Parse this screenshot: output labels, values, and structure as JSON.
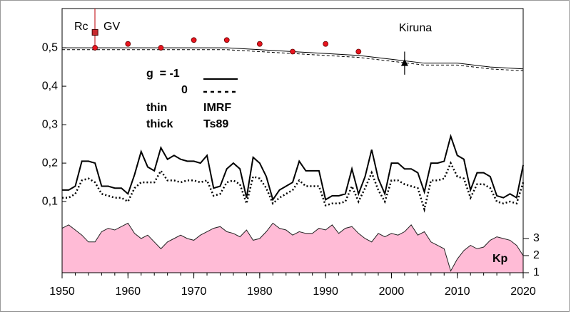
{
  "chart_data": {
    "type": "line",
    "xlim": [
      1950,
      2020
    ],
    "xticks": [
      1950,
      1960,
      1970,
      1980,
      1990,
      2000,
      2010,
      2020
    ],
    "ylim": [
      -0.085,
      0.602
    ],
    "yticks": [
      {
        "value": 0.1,
        "label": "0,1"
      },
      {
        "value": 0.2,
        "label": "0,2"
      },
      {
        "value": 0.3,
        "label": "0,3"
      },
      {
        "value": 0.4,
        "label": "0,4"
      },
      {
        "value": 0.5,
        "label": "0,5"
      }
    ],
    "y2lim": [
      1,
      16.46
    ],
    "y2ticks": [
      1,
      2,
      3
    ],
    "annotations": [
      "Rc",
      "GV",
      "Kiruna",
      "g  = -1",
      "0",
      "thin",
      "thick",
      "IMRF",
      "Ts89",
      "Kp"
    ],
    "x": [
      1950,
      1951,
      1952,
      1953,
      1954,
      1955,
      1956,
      1957,
      1958,
      1959,
      1960,
      1961,
      1962,
      1963,
      1964,
      1965,
      1966,
      1967,
      1968,
      1969,
      1970,
      1971,
      1972,
      1973,
      1974,
      1975,
      1976,
      1977,
      1978,
      1979,
      1980,
      1981,
      1982,
      1983,
      1984,
      1985,
      1986,
      1987,
      1988,
      1989,
      1990,
      1991,
      1992,
      1993,
      1994,
      1995,
      1996,
      1997,
      1998,
      1999,
      2000,
      2001,
      2002,
      2003,
      2004,
      2005,
      2006,
      2007,
      2008,
      2009,
      2010,
      2011,
      2012,
      2013,
      2014,
      2015,
      2016,
      2017,
      2018,
      2019,
      2020
    ],
    "series": [
      {
        "style": "area",
        "axis": "y2",
        "color": "#ffbbd6",
        "values": [
          3.6,
          3.8,
          3.5,
          3.2,
          2.8,
          2.8,
          3.4,
          3.6,
          3.5,
          3.7,
          3.9,
          3.3,
          3.0,
          3.2,
          2.8,
          2.4,
          2.8,
          3.0,
          3.2,
          3.0,
          2.9,
          3.2,
          3.4,
          3.6,
          3.7,
          3.4,
          3.3,
          3.1,
          3.5,
          2.9,
          3.0,
          3.4,
          3.9,
          3.6,
          3.5,
          3.2,
          3.4,
          3.3,
          3.3,
          3.6,
          3.5,
          3.8,
          3.3,
          3.6,
          3.7,
          3.3,
          3.0,
          2.8,
          3.3,
          3.1,
          3.3,
          3.2,
          3.4,
          3.8,
          3.2,
          3.4,
          2.8,
          2.6,
          2.4,
          1.1,
          1.8,
          2.3,
          2.6,
          2.4,
          2.5,
          2.9,
          3.1,
          3.0,
          2.9,
          2.6,
          2.0
        ]
      },
      {
        "style": "solid",
        "color": "#000000",
        "values": [
          0.13,
          0.13,
          0.14,
          0.205,
          0.205,
          0.2,
          0.14,
          0.14,
          0.135,
          0.135,
          0.12,
          0.17,
          0.23,
          0.19,
          0.18,
          0.24,
          0.21,
          0.22,
          0.21,
          0.205,
          0.205,
          0.2,
          0.22,
          0.135,
          0.14,
          0.185,
          0.2,
          0.185,
          0.11,
          0.215,
          0.2,
          0.165,
          0.105,
          0.13,
          0.14,
          0.15,
          0.205,
          0.18,
          0.18,
          0.18,
          0.105,
          0.115,
          0.115,
          0.12,
          0.185,
          0.12,
          0.165,
          0.235,
          0.16,
          0.12,
          0.2,
          0.2,
          0.185,
          0.185,
          0.175,
          0.125,
          0.2,
          0.2,
          0.205,
          0.27,
          0.22,
          0.21,
          0.13,
          0.175,
          0.175,
          0.165,
          0.115,
          0.11,
          0.12,
          0.11,
          0.195
        ]
      },
      {
        "style": "dotted",
        "color": "#000000",
        "values": [
          0.11,
          0.11,
          0.12,
          0.155,
          0.16,
          0.15,
          0.12,
          0.115,
          0.11,
          0.11,
          0.1,
          0.135,
          0.15,
          0.15,
          0.15,
          0.18,
          0.155,
          0.155,
          0.15,
          0.155,
          0.155,
          0.15,
          0.155,
          0.115,
          0.12,
          0.15,
          0.155,
          0.145,
          0.095,
          0.165,
          0.16,
          0.135,
          0.095,
          0.11,
          0.12,
          0.13,
          0.155,
          0.14,
          0.14,
          0.14,
          0.09,
          0.095,
          0.095,
          0.1,
          0.14,
          0.1,
          0.135,
          0.175,
          0.13,
          0.1,
          0.155,
          0.155,
          0.145,
          0.14,
          0.135,
          0.08,
          0.155,
          0.155,
          0.16,
          0.2,
          0.165,
          0.16,
          0.11,
          0.145,
          0.145,
          0.135,
          0.1,
          0.095,
          0.1,
          0.095,
          0.15
        ]
      },
      {
        "style": "thin",
        "color": "#000000",
        "x": [
          1950,
          1955,
          1960,
          1965,
          1970,
          1975,
          1980,
          1985,
          1990,
          1995,
          2000,
          2005,
          2010,
          2015,
          2020
        ],
        "values": [
          0.5,
          0.5,
          0.5,
          0.5,
          0.5,
          0.5,
          0.495,
          0.49,
          0.485,
          0.48,
          0.47,
          0.46,
          0.46,
          0.45,
          0.445
        ]
      },
      {
        "style": "thin-dashed",
        "color": "#000000",
        "x": [
          1950,
          1955,
          1960,
          1965,
          1970,
          1975,
          1980,
          1985,
          1990,
          1995,
          2000,
          2005,
          2010,
          2015,
          2020
        ],
        "values": [
          0.495,
          0.495,
          0.495,
          0.495,
          0.495,
          0.495,
          0.49,
          0.485,
          0.48,
          0.475,
          0.465,
          0.455,
          0.455,
          0.445,
          0.44
        ]
      },
      {
        "style": "dots",
        "color": "#e8141e",
        "x": [
          1955,
          1960,
          1965,
          1970,
          1975,
          1980,
          1985,
          1990,
          1995
        ],
        "values": [
          0.5,
          0.51,
          0.5,
          0.52,
          0.52,
          0.51,
          0.49,
          0.51,
          0.49
        ]
      },
      {
        "style": "square",
        "color": "#c8282d",
        "x": [
          1955
        ],
        "values": [
          0.54
        ]
      },
      {
        "style": "triangle",
        "color": "#000000",
        "x": [
          2002
        ],
        "values": [
          0.46
        ],
        "errors": [
          0.03
        ]
      }
    ]
  }
}
